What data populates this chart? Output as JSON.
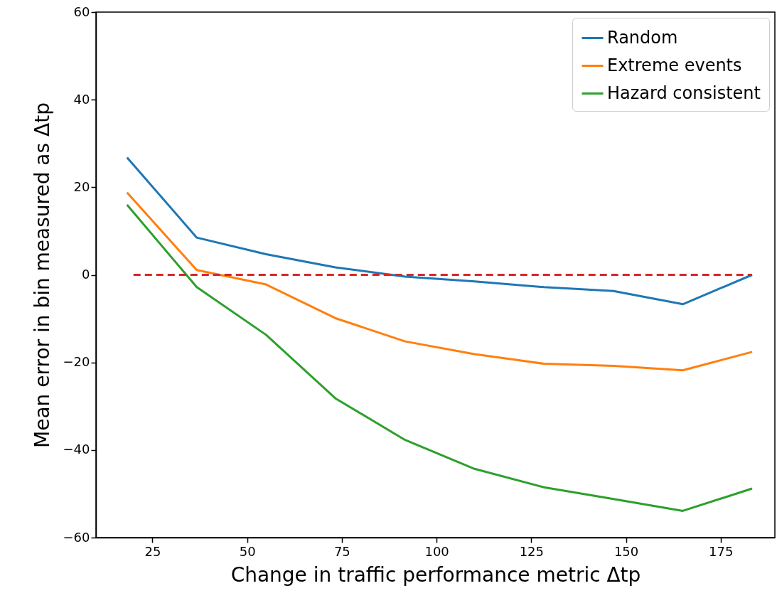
{
  "chart_data": {
    "type": "line",
    "xlabel": "Change in traffic performance metric Δtp",
    "ylabel": "Mean error in bin measured as Δtp",
    "xlim": [
      10.1,
      189.3
    ],
    "ylim": [
      -60,
      60
    ],
    "xticks": [
      25,
      50,
      75,
      100,
      125,
      150,
      175
    ],
    "yticks": [
      -60,
      -40,
      -20,
      0,
      20,
      40,
      60
    ],
    "x": [
      18.3,
      36.7,
      55,
      73.3,
      91.7,
      110,
      128.3,
      146.7,
      165,
      183.3
    ],
    "series": [
      {
        "name": "Random",
        "color": "#1f77b4",
        "values": [
          26.8,
          8.5,
          4.7,
          1.7,
          -0.4,
          -1.5,
          -2.8,
          -3.7,
          -6.7,
          0
        ]
      },
      {
        "name": "Extreme events",
        "color": "#ff7f0e",
        "values": [
          18.8,
          1.1,
          -2.2,
          -9.9,
          -15.2,
          -18.1,
          -20.3,
          -20.8,
          -21.8,
          -17.6
        ]
      },
      {
        "name": "Hazard consistent",
        "color": "#2ca02c",
        "values": [
          16.0,
          -2.8,
          -13.7,
          -28.2,
          -37.7,
          -44.3,
          -48.5,
          -51.2,
          -53.9,
          -48.8
        ]
      },
      {
        "type": "line",
        "color": "#d62728",
        "line_style": "dashed",
        "x": [
          20,
          183.3
        ],
        "values": [
          0,
          0
        ]
      }
    ],
    "legend": "top right",
    "grid": false
  }
}
